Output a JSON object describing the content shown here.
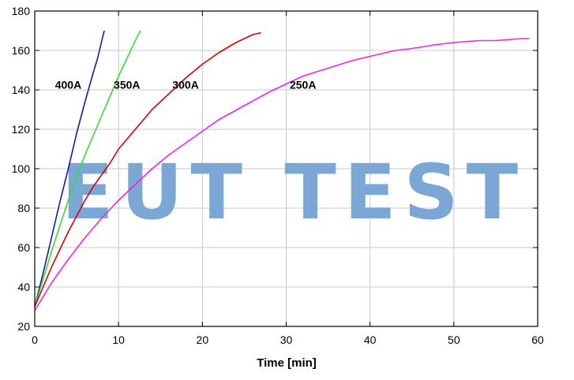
{
  "chart_data": {
    "type": "line",
    "title": "",
    "xlabel": "Time [min]",
    "ylabel": "",
    "xlim": [
      0,
      60
    ],
    "ylim": [
      20,
      180
    ],
    "xticks": [
      0,
      10,
      20,
      30,
      40,
      50,
      60
    ],
    "yticks": [
      20,
      40,
      60,
      80,
      100,
      120,
      140,
      160,
      180
    ],
    "grid": true,
    "series": [
      {
        "name": "400A",
        "color": "#1a1aa0",
        "x": [
          0,
          1,
          2,
          3,
          4,
          5,
          6,
          7,
          7.5,
          8,
          8.3
        ],
        "y": [
          30,
          47,
          65,
          83,
          100,
          118,
          134,
          149,
          156,
          165,
          170
        ]
      },
      {
        "name": "350A",
        "color": "#33dd33",
        "x": [
          0,
          1,
          2,
          3,
          4,
          5,
          6,
          7,
          8,
          9,
          10,
          11,
          12,
          12.6
        ],
        "y": [
          30,
          44,
          58,
          71,
          84,
          96,
          107,
          117,
          127,
          137,
          147,
          156,
          165,
          170
        ]
      },
      {
        "name": "300A",
        "color": "#dd0000",
        "x": [
          0,
          1,
          2,
          3,
          4,
          5,
          6,
          7,
          8,
          9,
          10,
          12,
          14,
          16,
          18,
          20,
          22,
          24,
          26,
          27
        ],
        "y": [
          30,
          40,
          50,
          59,
          68,
          76,
          84,
          91,
          97,
          103,
          110,
          120,
          130,
          138,
          146,
          153,
          159,
          164,
          168,
          169
        ]
      },
      {
        "name": "250A",
        "color": "#ee22ee",
        "x": [
          0,
          2,
          4,
          6,
          8,
          10,
          12,
          14,
          16,
          18,
          20,
          22,
          25,
          28,
          30,
          32,
          35,
          38,
          40,
          43,
          45,
          48,
          50,
          53,
          55,
          58,
          59
        ],
        "y": [
          28,
          42,
          54,
          65,
          75,
          84,
          92,
          100,
          107,
          113,
          119,
          125,
          132,
          139,
          143,
          147,
          151,
          155,
          157,
          160,
          161,
          163,
          164,
          165,
          165,
          166,
          166
        ]
      }
    ],
    "annotations": [
      {
        "text": "400A",
        "x": 4.0,
        "y": 139
      },
      {
        "text": "350A",
        "x": 11.0,
        "y": 139
      },
      {
        "text": "300A",
        "x": 18.0,
        "y": 139
      },
      {
        "text": "250A",
        "x": 32.0,
        "y": 139
      }
    ]
  },
  "watermark": {
    "text": "EUT TEST",
    "color": "#6fa0d2"
  }
}
